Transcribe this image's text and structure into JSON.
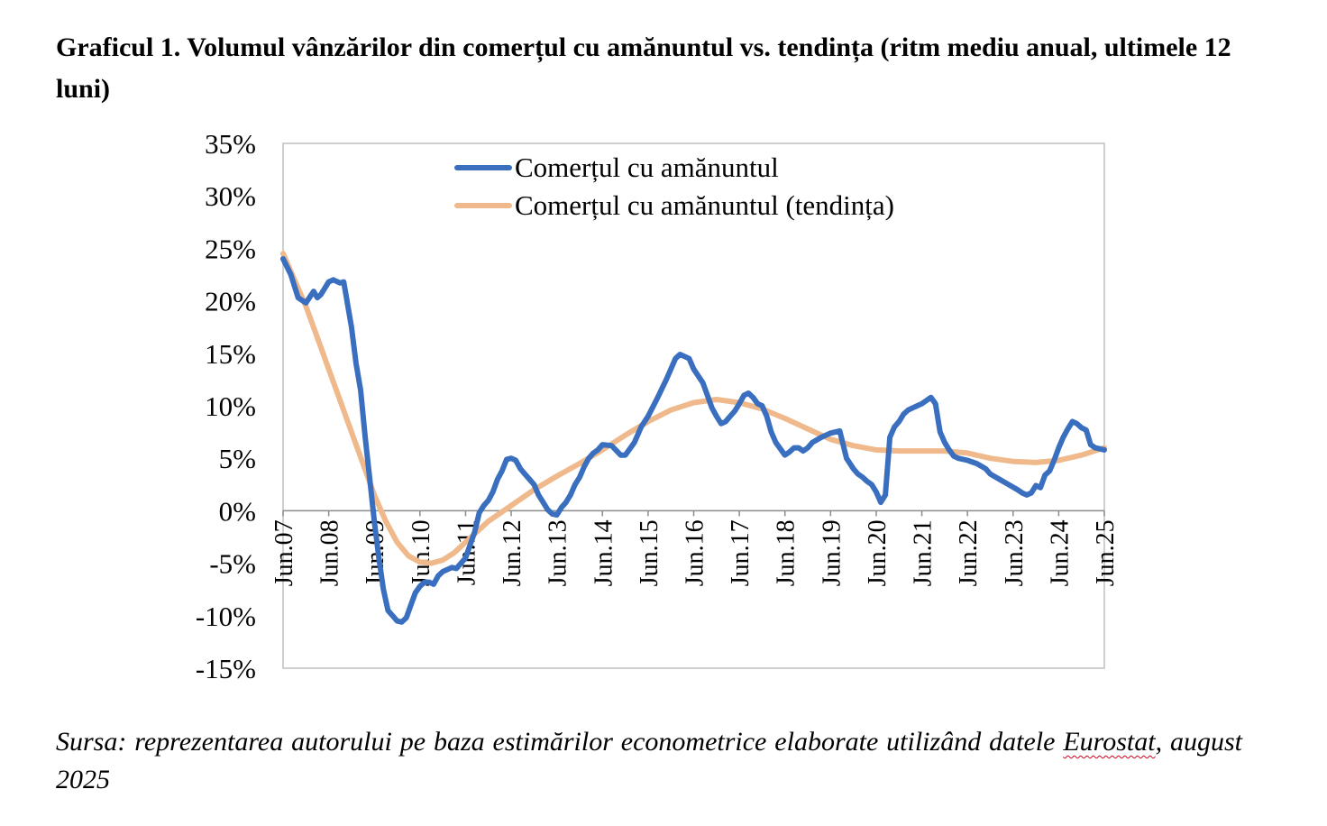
{
  "title": "Graficul 1. Volumul vânzărilor din comerțul cu amănuntul vs. tendința (ritm mediu anual, ultimele 12 luni)",
  "source": {
    "line1": "Sursa: reprezentarea autorului pe baza estimărilor econometrice elaborate utilizând datele",
    "word_eurostat": "Eurostat",
    "rest": ", august 2025"
  },
  "chart_data": {
    "type": "line",
    "x_unit": "years",
    "ylim": [
      -15,
      35
    ],
    "yticks": [
      35,
      30,
      25,
      20,
      15,
      10,
      5,
      0,
      -5,
      -10,
      -15
    ],
    "ytick_labels": [
      "35%",
      "30%",
      "25%",
      "20%",
      "15%",
      "10%",
      "5%",
      "0%",
      "-5%",
      "-10%",
      "-15%"
    ],
    "xlim": [
      2007.5,
      2025.5
    ],
    "xtick_labels": [
      "Jun.07",
      "Jun.08",
      "Jun.09",
      "Jun.10",
      "Jun.11",
      "Jun.12",
      "Jun.13",
      "Jun.14",
      "Jun.15",
      "Jun.16",
      "Jun.17",
      "Jun.18",
      "Jun.19",
      "Jun.20",
      "Jun.21",
      "Jun.22",
      "Jun.23",
      "Jun.24",
      "Jun.25"
    ],
    "xtick_values": [
      2007.5,
      2008.5,
      2009.5,
      2010.5,
      2011.5,
      2012.5,
      2013.5,
      2014.5,
      2015.5,
      2016.5,
      2017.5,
      2018.5,
      2019.5,
      2020.5,
      2021.5,
      2022.5,
      2023.5,
      2024.5,
      2025.5
    ],
    "grid": false,
    "legend_position": "top-center",
    "series": [
      {
        "name": "Comerțul cu amănuntul",
        "color": "#3a6fc0",
        "x": [
          2007.5,
          2007.67,
          2007.83,
          2008.0,
          2008.17,
          2008.25,
          2008.33,
          2008.5,
          2008.6,
          2008.75,
          2008.83,
          2009.0,
          2009.1,
          2009.2,
          2009.3,
          2009.4,
          2009.5,
          2009.6,
          2009.7,
          2009.8,
          2009.9,
          2010.0,
          2010.1,
          2010.2,
          2010.3,
          2010.4,
          2010.5,
          2010.6,
          2010.7,
          2010.8,
          2010.9,
          2011.0,
          2011.2,
          2011.3,
          2011.5,
          2011.7,
          2011.8,
          2011.9,
          2012.0,
          2012.1,
          2012.2,
          2012.3,
          2012.4,
          2012.5,
          2012.6,
          2012.7,
          2012.8,
          2012.9,
          2013.0,
          2013.1,
          2013.2,
          2013.3,
          2013.4,
          2013.5,
          2013.6,
          2013.7,
          2013.8,
          2013.9,
          2014.0,
          2014.1,
          2014.2,
          2014.3,
          2014.4,
          2014.5,
          2014.7,
          2014.9,
          2015.0,
          2015.2,
          2015.35,
          2015.5,
          2015.7,
          2015.9,
          2016.0,
          2016.1,
          2016.2,
          2016.3,
          2016.4,
          2016.5,
          2016.7,
          2016.8,
          2016.9,
          2017.0,
          2017.1,
          2017.2,
          2017.3,
          2017.4,
          2017.5,
          2017.6,
          2017.7,
          2017.8,
          2017.9,
          2018.0,
          2018.1,
          2018.2,
          2018.3,
          2018.5,
          2018.6,
          2018.7,
          2018.8,
          2018.9,
          2019.0,
          2019.1,
          2019.3,
          2019.5,
          2019.7,
          2019.85,
          2020.0,
          2020.1,
          2020.2,
          2020.3,
          2020.4,
          2020.5,
          2020.6,
          2020.7,
          2020.8,
          2020.9,
          2021.0,
          2021.1,
          2021.2,
          2021.3,
          2021.4,
          2021.5,
          2021.6,
          2021.7,
          2021.8,
          2021.9,
          2022.0,
          2022.1,
          2022.2,
          2022.3,
          2022.5,
          2022.7,
          2022.9,
          2023.0,
          2023.2,
          2023.4,
          2023.6,
          2023.7,
          2023.8,
          2023.9,
          2024.0,
          2024.1,
          2024.2,
          2024.3,
          2024.4,
          2024.5,
          2024.6,
          2024.7,
          2024.8,
          2024.9,
          2025.0,
          2025.1,
          2025.2,
          2025.3,
          2025.4,
          2025.5
        ],
        "y": [
          24,
          22.5,
          20.3,
          19.8,
          20.9,
          20.3,
          20.6,
          21.8,
          22.0,
          21.7,
          21.8,
          17.5,
          14.0,
          11.5,
          7.0,
          3.0,
          -1.0,
          -4.5,
          -7.5,
          -9.5,
          -10.0,
          -10.5,
          -10.6,
          -10.2,
          -9.0,
          -7.8,
          -7.2,
          -6.8,
          -6.8,
          -7.0,
          -6.2,
          -5.8,
          -5.4,
          -5.5,
          -4.5,
          -2.0,
          -0.2,
          0.5,
          1.0,
          1.8,
          3.0,
          3.8,
          4.9,
          5.0,
          4.8,
          4.0,
          3.5,
          3.0,
          2.5,
          1.5,
          0.8,
          0.1,
          -0.3,
          -0.4,
          0.3,
          0.8,
          1.5,
          2.5,
          3.2,
          4.2,
          5.0,
          5.5,
          5.8,
          6.3,
          6.2,
          5.3,
          5.3,
          6.5,
          8.0,
          9.0,
          10.7,
          12.5,
          13.5,
          14.5,
          14.9,
          14.7,
          14.5,
          13.5,
          12.2,
          11.0,
          9.8,
          9.0,
          8.3,
          8.5,
          9.0,
          9.5,
          10.2,
          11.0,
          11.2,
          10.8,
          10.2,
          10.0,
          9.0,
          7.5,
          6.5,
          5.3,
          5.6,
          6.0,
          6.0,
          5.7,
          6.0,
          6.5,
          7.0,
          7.4,
          7.6,
          5.0,
          4.0,
          3.5,
          3.2,
          2.8,
          2.5,
          1.8,
          0.8,
          1.5,
          7.0,
          8.0,
          8.5,
          9.2,
          9.6,
          9.8,
          10.0,
          10.2,
          10.5,
          10.8,
          10.2,
          7.5,
          6.5,
          5.8,
          5.2,
          5.0,
          4.8,
          4.5,
          4.0,
          3.5,
          3.0,
          2.5,
          2.0,
          1.7,
          1.5,
          1.7,
          2.4,
          2.2,
          3.4,
          3.8,
          4.8,
          6.0,
          7.0,
          7.8,
          8.5,
          8.3,
          7.9,
          7.7,
          6.3,
          6.0,
          5.9,
          5.8
        ]
      },
      {
        "name": "Comerțul cu amănuntul (tendința)",
        "color": "#efb98c",
        "x": [
          2007.5,
          2007.75,
          2008.0,
          2008.25,
          2008.5,
          2008.75,
          2009.0,
          2009.25,
          2009.5,
          2009.75,
          2010.0,
          2010.25,
          2010.5,
          2010.75,
          2011.0,
          2011.25,
          2011.5,
          2011.75,
          2012.0,
          2012.5,
          2013.0,
          2013.5,
          2014.0,
          2014.5,
          2015.0,
          2015.5,
          2016.0,
          2016.5,
          2017.0,
          2017.5,
          2018.0,
          2018.5,
          2019.0,
          2019.5,
          2020.0,
          2020.5,
          2021.0,
          2021.5,
          2022.0,
          2022.5,
          2023.0,
          2023.5,
          2024.0,
          2024.5,
          2025.0,
          2025.5
        ],
        "y": [
          24.5,
          22.0,
          19.5,
          16.5,
          13.5,
          10.5,
          7.5,
          4.5,
          1.5,
          -1.0,
          -3.0,
          -4.3,
          -4.9,
          -5.0,
          -4.7,
          -4.0,
          -3.0,
          -2.0,
          -1.0,
          0.5,
          2.0,
          3.3,
          4.5,
          5.8,
          7.2,
          8.5,
          9.6,
          10.3,
          10.6,
          10.3,
          9.7,
          8.8,
          7.8,
          6.8,
          6.2,
          5.8,
          5.7,
          5.7,
          5.7,
          5.5,
          5.0,
          4.7,
          4.6,
          4.8,
          5.3,
          6.0
        ]
      }
    ]
  }
}
